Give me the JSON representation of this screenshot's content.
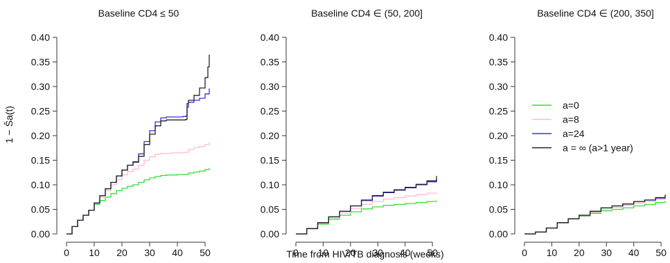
{
  "chart_data": [
    {
      "type": "line",
      "title": "Baseline CD4 ≤ 50",
      "xlabel": "",
      "ylabel": "1 − Ŝa(t)",
      "xlim": [
        0,
        52
      ],
      "ylim": [
        0,
        0.4
      ],
      "xticks": [
        0,
        10,
        20,
        30,
        40,
        50
      ],
      "yticks": [
        0.0,
        0.05,
        0.1,
        0.15,
        0.2,
        0.25,
        0.3,
        0.35,
        0.4
      ],
      "ytick_labels": [
        "0.00",
        "0.05",
        "0.10",
        "0.15",
        "0.20",
        "0.25",
        "0.30",
        "0.35",
        "0.40"
      ],
      "series": [
        {
          "name": "a=0",
          "color": "#33dd33",
          "x": [
            0,
            2,
            4,
            6,
            8,
            10,
            12,
            14,
            16,
            18,
            20,
            22,
            24,
            26,
            28,
            30,
            32,
            34,
            36,
            38,
            40,
            42,
            44,
            46,
            48,
            50,
            51.5
          ],
          "y": [
            0,
            0.015,
            0.028,
            0.038,
            0.048,
            0.06,
            0.068,
            0.075,
            0.082,
            0.088,
            0.093,
            0.097,
            0.1,
            0.105,
            0.11,
            0.114,
            0.117,
            0.119,
            0.12,
            0.12,
            0.121,
            0.121,
            0.124,
            0.126,
            0.128,
            0.131,
            0.134
          ]
        },
        {
          "name": "a=8",
          "color": "#ffbbcc",
          "x": [
            0,
            2,
            4,
            6,
            8,
            10,
            12,
            14,
            16,
            18,
            20,
            22,
            24,
            26,
            28,
            30,
            32,
            34,
            36,
            38,
            40,
            42,
            44,
            46,
            48,
            50,
            51.5
          ],
          "y": [
            0,
            0.015,
            0.028,
            0.038,
            0.048,
            0.062,
            0.075,
            0.088,
            0.1,
            0.11,
            0.12,
            0.127,
            0.132,
            0.14,
            0.15,
            0.157,
            0.162,
            0.164,
            0.164,
            0.165,
            0.165,
            0.166,
            0.172,
            0.176,
            0.178,
            0.182,
            0.187
          ]
        },
        {
          "name": "a=24",
          "color": "#3333dd",
          "x": [
            0,
            2,
            4,
            6,
            8,
            10,
            12,
            14,
            16,
            18,
            20,
            22,
            24,
            26,
            28,
            30,
            32,
            34,
            36,
            38,
            40,
            42,
            43,
            43.5,
            44,
            46,
            48,
            50,
            51.5
          ],
          "y": [
            0,
            0.015,
            0.028,
            0.038,
            0.048,
            0.063,
            0.078,
            0.092,
            0.105,
            0.118,
            0.13,
            0.14,
            0.147,
            0.163,
            0.188,
            0.21,
            0.228,
            0.236,
            0.238,
            0.238,
            0.238,
            0.239,
            0.24,
            0.258,
            0.268,
            0.272,
            0.276,
            0.285,
            0.296
          ]
        },
        {
          "name": "a = ∞ (a>1 year)",
          "color": "#222222",
          "x": [
            0,
            2,
            4,
            6,
            8,
            10,
            12,
            14,
            16,
            18,
            20,
            22,
            24,
            26,
            28,
            30,
            32,
            34,
            36,
            38,
            40,
            42,
            43,
            43.5,
            44,
            46,
            48,
            50,
            51,
            51.5
          ],
          "y": [
            0,
            0.015,
            0.028,
            0.038,
            0.048,
            0.063,
            0.078,
            0.092,
            0.105,
            0.118,
            0.13,
            0.14,
            0.146,
            0.158,
            0.182,
            0.203,
            0.22,
            0.23,
            0.232,
            0.232,
            0.232,
            0.232,
            0.233,
            0.265,
            0.272,
            0.282,
            0.297,
            0.318,
            0.34,
            0.365
          ]
        }
      ]
    },
    {
      "type": "line",
      "title": "Baseline CD4 ∈ (50, 200]",
      "xlabel": "",
      "ylabel": "",
      "xlim": [
        0,
        52
      ],
      "ylim": [
        0,
        0.4
      ],
      "xticks": [
        0,
        10,
        20,
        30,
        40,
        50
      ],
      "yticks": [
        0.0,
        0.05,
        0.1,
        0.15,
        0.2,
        0.25,
        0.3,
        0.35,
        0.4
      ],
      "ytick_labels": [
        "0.00",
        "0.05",
        "0.10",
        "0.15",
        "0.20",
        "0.25",
        "0.30",
        "0.35",
        "0.40"
      ],
      "series": [
        {
          "name": "a=0",
          "color": "#33dd33",
          "x": [
            0,
            4,
            8,
            12,
            16,
            20,
            24,
            28,
            32,
            36,
            40,
            44,
            48,
            51.5
          ],
          "y": [
            0,
            0.01,
            0.02,
            0.03,
            0.038,
            0.045,
            0.051,
            0.055,
            0.058,
            0.06,
            0.062,
            0.064,
            0.066,
            0.068
          ]
        },
        {
          "name": "a=8",
          "color": "#ffbbcc",
          "x": [
            0,
            4,
            8,
            12,
            16,
            20,
            24,
            28,
            32,
            36,
            40,
            44,
            48,
            51.5
          ],
          "y": [
            0,
            0.01,
            0.022,
            0.033,
            0.043,
            0.052,
            0.06,
            0.066,
            0.071,
            0.074,
            0.077,
            0.08,
            0.083,
            0.085
          ]
        },
        {
          "name": "a=24",
          "color": "#3333dd",
          "x": [
            0,
            4,
            8,
            12,
            16,
            20,
            24,
            28,
            32,
            36,
            40,
            44,
            48,
            51.5
          ],
          "y": [
            0,
            0.011,
            0.023,
            0.035,
            0.046,
            0.057,
            0.068,
            0.077,
            0.084,
            0.089,
            0.094,
            0.1,
            0.106,
            0.112
          ]
        },
        {
          "name": "a = ∞ (a>1 year)",
          "color": "#222222",
          "x": [
            0,
            4,
            8,
            12,
            16,
            20,
            24,
            28,
            32,
            36,
            40,
            44,
            48,
            51.5
          ],
          "y": [
            0,
            0.011,
            0.023,
            0.035,
            0.046,
            0.057,
            0.069,
            0.078,
            0.085,
            0.09,
            0.095,
            0.101,
            0.108,
            0.118
          ]
        }
      ]
    },
    {
      "type": "line",
      "title": "Baseline CD4 ∈ (200, 350]",
      "xlabel": "",
      "ylabel": "",
      "xlim": [
        0,
        52
      ],
      "ylim": [
        0,
        0.4
      ],
      "xticks": [
        0,
        10,
        20,
        30,
        40,
        50
      ],
      "yticks": [
        0.0,
        0.05,
        0.1,
        0.15,
        0.2,
        0.25,
        0.3,
        0.35,
        0.4
      ],
      "ytick_labels": [
        "0.00",
        "0.05",
        "0.10",
        "0.15",
        "0.20",
        "0.25",
        "0.30",
        "0.35",
        "0.40"
      ],
      "legend": {
        "position": "center-right"
      },
      "series": [
        {
          "name": "a=0",
          "color": "#33dd33",
          "x": [
            0,
            4,
            8,
            12,
            16,
            20,
            24,
            28,
            32,
            36,
            40,
            44,
            48,
            51.5
          ],
          "y": [
            0,
            0.004,
            0.012,
            0.022,
            0.03,
            0.036,
            0.042,
            0.047,
            0.05,
            0.053,
            0.057,
            0.06,
            0.064,
            0.067
          ]
        },
        {
          "name": "a=8",
          "color": "#ffbbcc",
          "x": [
            0,
            4,
            8,
            12,
            16,
            20,
            24,
            28,
            32,
            36,
            40,
            44,
            48,
            51.5
          ],
          "y": [
            0,
            0.004,
            0.012,
            0.022,
            0.03,
            0.037,
            0.044,
            0.05,
            0.054,
            0.058,
            0.063,
            0.066,
            0.07,
            0.074
          ]
        },
        {
          "name": "a=24",
          "color": "#3333dd",
          "x": [
            0,
            4,
            8,
            12,
            16,
            20,
            24,
            28,
            32,
            36,
            40,
            44,
            48,
            51.5
          ],
          "y": [
            0,
            0.004,
            0.012,
            0.023,
            0.031,
            0.038,
            0.046,
            0.053,
            0.057,
            0.061,
            0.066,
            0.069,
            0.073,
            0.078
          ]
        },
        {
          "name": "a = ∞ (a>1 year)",
          "color": "#222222",
          "x": [
            0,
            4,
            8,
            12,
            16,
            20,
            24,
            28,
            32,
            36,
            40,
            44,
            48,
            51.5
          ],
          "y": [
            0,
            0.004,
            0.012,
            0.023,
            0.031,
            0.038,
            0.046,
            0.053,
            0.057,
            0.061,
            0.066,
            0.069,
            0.074,
            0.08
          ]
        }
      ]
    }
  ],
  "shared_xlabel": "Time from HIV/TB diagnosis (weeks)"
}
